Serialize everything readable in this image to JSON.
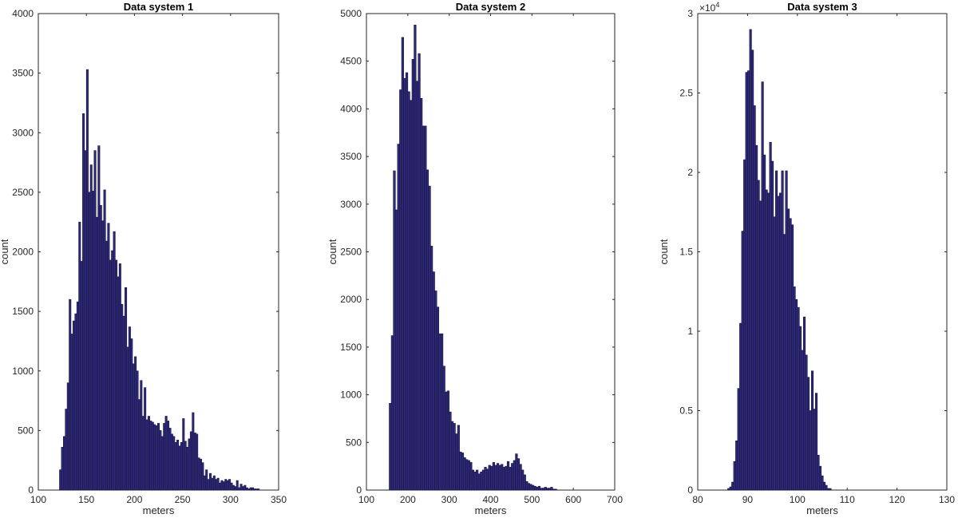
{
  "colors": {
    "bar_fill": "#2e2a78",
    "bar_edge": "#15123f",
    "axis": "#262626",
    "background": "#ffffff"
  },
  "chart_data": [
    {
      "type": "bar",
      "title": "Data system 1",
      "xlabel": "meters",
      "ylabel": "count",
      "xlim": [
        100,
        350
      ],
      "ylim": [
        0,
        4000
      ],
      "xticks": [
        100,
        150,
        200,
        250,
        300,
        350
      ],
      "yticks": [
        0,
        500,
        1000,
        1500,
        2000,
        2500,
        3000,
        3500,
        4000
      ],
      "grid": false,
      "bin_start": 122,
      "bin_width": 2,
      "values": [
        170,
        360,
        450,
        680,
        900,
        1600,
        1310,
        1420,
        1480,
        1580,
        2250,
        1920,
        3160,
        2850,
        3530,
        2500,
        2730,
        2510,
        2850,
        2290,
        2890,
        2390,
        2260,
        2520,
        2090,
        2240,
        1930,
        2010,
        2170,
        1930,
        1790,
        1900,
        1560,
        1460,
        1700,
        1200,
        1370,
        1270,
        1060,
        1120,
        1000,
        760,
        920,
        620,
        860,
        590,
        620,
        580,
        570,
        550,
        540,
        560,
        500,
        450,
        560,
        620,
        580,
        520,
        470,
        450,
        400,
        420,
        370,
        400,
        600,
        410,
        360,
        430,
        490,
        650,
        480,
        470,
        270,
        260,
        230,
        120,
        170,
        90,
        140,
        100,
        120,
        90,
        100,
        60,
        80,
        70,
        90,
        80,
        90,
        60,
        40,
        30,
        80,
        20,
        50,
        30,
        40,
        20,
        10,
        20,
        20,
        10,
        10,
        10
      ]
    },
    {
      "type": "bar",
      "title": "Data system 2",
      "xlabel": "meters",
      "ylabel": "count",
      "xlim": [
        100,
        700
      ],
      "ylim": [
        0,
        5000
      ],
      "xticks": [
        100,
        200,
        300,
        400,
        500,
        600,
        700
      ],
      "yticks": [
        0,
        500,
        1000,
        1500,
        2000,
        2500,
        3000,
        3500,
        4000,
        4500,
        5000
      ],
      "grid": false,
      "bin_start": 155,
      "bin_width": 5,
      "values": [
        910,
        1620,
        3350,
        2940,
        3630,
        4200,
        4750,
        4320,
        4380,
        4180,
        4090,
        4520,
        4880,
        4290,
        4580,
        4110,
        3820,
        3820,
        3360,
        3190,
        2560,
        2290,
        2090,
        1920,
        1640,
        1640,
        1300,
        1030,
        1040,
        820,
        720,
        700,
        590,
        680,
        400,
        390,
        340,
        320,
        310,
        290,
        210,
        190,
        210,
        170,
        190,
        210,
        240,
        220,
        260,
        250,
        290,
        260,
        280,
        260,
        270,
        240,
        250,
        300,
        240,
        280,
        310,
        380,
        330,
        270,
        210,
        160,
        90,
        70,
        60,
        50,
        40,
        30,
        40,
        20,
        20,
        30,
        20,
        20,
        30,
        10,
        10
      ]
    },
    {
      "type": "bar",
      "title": "Data system 3",
      "xlabel": "meters",
      "ylabel": "count",
      "xlim": [
        80,
        130
      ],
      "ylim": [
        0,
        30000
      ],
      "xticks": [
        80,
        90,
        100,
        110,
        120,
        130
      ],
      "yticks": [
        0,
        5000,
        10000,
        15000,
        20000,
        25000,
        30000
      ],
      "ytick_labels": [
        "0",
        "0.5",
        "1",
        "1.5",
        "2",
        "2.5",
        "3"
      ],
      "y_exponent_base": "×10",
      "y_exponent_power": "4",
      "grid": false,
      "bin_start": 86,
      "bin_width": 0.4,
      "values": [
        100,
        200,
        500,
        1800,
        3100,
        6400,
        10500,
        16300,
        20800,
        26300,
        26400,
        29000,
        27700,
        24200,
        21700,
        19500,
        18200,
        25700,
        21100,
        18900,
        18700,
        21900,
        20700,
        17200,
        20100,
        18500,
        18700,
        20100,
        16100,
        20100,
        17700,
        17100,
        16700,
        12800,
        12000,
        11500,
        10300,
        8800,
        10900,
        8500,
        7100,
        5000,
        7500,
        5100,
        6100,
        2200,
        1500,
        900,
        500,
        300,
        100,
        100
      ]
    }
  ]
}
